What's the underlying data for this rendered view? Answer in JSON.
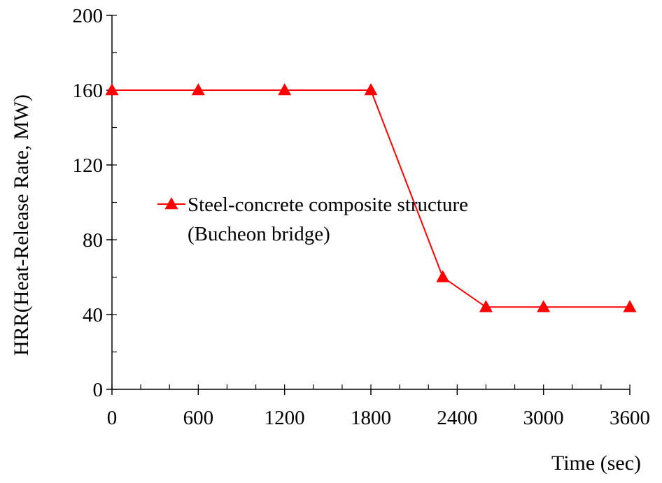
{
  "chart_data": {
    "type": "line",
    "title": "",
    "xlabel": "Time (sec)",
    "ylabel": "HRR(Heat-Release Rate, MW)",
    "xlim": [
      0,
      3600
    ],
    "ylim": [
      0,
      200
    ],
    "x_ticks": [
      0,
      600,
      1200,
      1800,
      2400,
      3000,
      3600
    ],
    "x_tick_labels": [
      "0",
      "600",
      "1200",
      "1800",
      "2400",
      "3000",
      "3600"
    ],
    "x_minor_step": 200,
    "y_ticks": [
      0,
      40,
      80,
      120,
      160,
      200
    ],
    "y_tick_labels": [
      "0",
      "40",
      "80",
      "120",
      "160",
      "200"
    ],
    "y_minor_step": 20,
    "grid": false,
    "legend_position": "center-left",
    "series": [
      {
        "name_line1": "Steel-concrete composite structure",
        "name_line2": "(Bucheon bridge)",
        "color": "#ff0000",
        "marker": "triangle",
        "x": [
          0,
          600,
          1200,
          1800,
          2300,
          2600,
          3000,
          3600
        ],
        "y": [
          160,
          160,
          160,
          160,
          60,
          44,
          44,
          44
        ]
      }
    ]
  }
}
